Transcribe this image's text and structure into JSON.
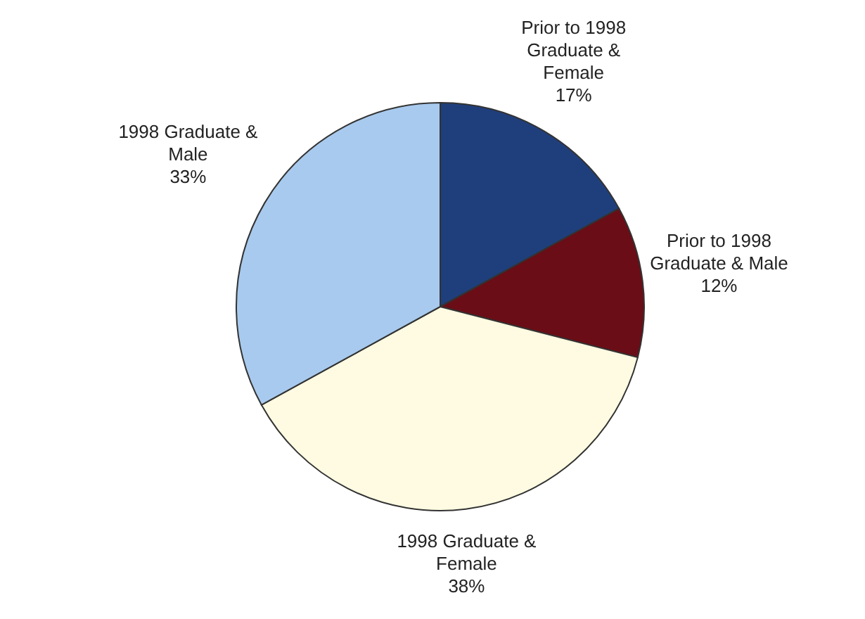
{
  "chart_data": {
    "type": "pie",
    "categories": [
      "Prior to 1998 Graduate & Female",
      "Prior to 1998 Graduate & Male",
      "1998 Graduate & Female",
      "1998 Graduate & Male"
    ],
    "values": [
      17,
      12,
      38,
      33
    ],
    "colors": [
      "#1f3f7c",
      "#6a0d16",
      "#fffbe2",
      "#a8caee"
    ],
    "value_labels": [
      "17%",
      "12%",
      "38%",
      "33%"
    ],
    "legend": false
  }
}
